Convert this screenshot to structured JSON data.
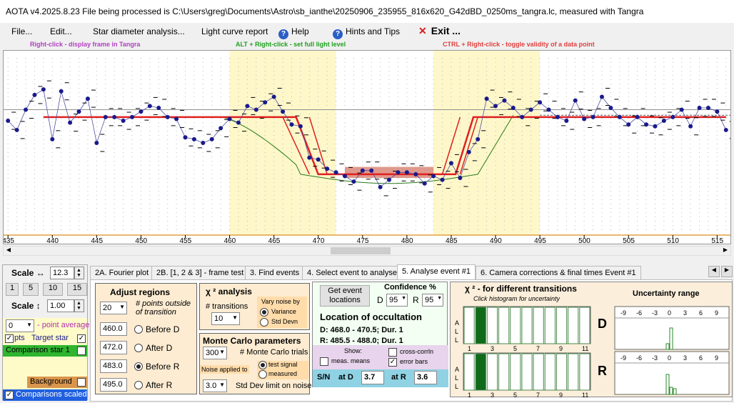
{
  "window": {
    "title": "AOTA v4.2025.8.23     File being processed is C:\\Users\\greg\\Documents\\Astro\\sb_ianthe\\20250906_235955_816x620_G42dBD_0250ms_tangra.lc, measured with Tangra"
  },
  "menu": {
    "file": "File...",
    "edit": "Edit...",
    "star_diameter": "Star diameter analysis...",
    "light_curve": "Light curve report",
    "help": "Help",
    "hints": "Hints and Tips",
    "exit": "Exit ..."
  },
  "hints": {
    "right_click": "Right-click  -  display frame in Tangra",
    "alt_right_click": "ALT + Right-click  -  set full light level",
    "ctrl_right_click": "CTRL + Right-click  -  toggle validity of a data point"
  },
  "colors": {
    "shade": "#fdf7c9",
    "event_line": "#e02020",
    "data": "#1a1a8c",
    "model": "#2a7a1a",
    "menu_hint_purple": "#b040c0",
    "menu_hint_green": "#20a020",
    "menu_hint_red": "#e04040"
  },
  "chart_data": {
    "type": "line",
    "x_ticks": [
      "435",
      "440",
      "445",
      "450",
      "455",
      "460",
      "465",
      "470",
      "475",
      "480",
      "485",
      "490",
      "495",
      "500",
      "505",
      "510",
      "515"
    ],
    "xlim": [
      434.5,
      516.5
    ],
    "ylim": [
      0,
      1
    ],
    "shaded_regions": [
      [
        460,
        472
      ],
      [
        483,
        495
      ]
    ],
    "event_model": [
      [
        439,
        0.64
      ],
      [
        467.5,
        0.64
      ],
      [
        470,
        0.33
      ],
      [
        485.5,
        0.33
      ],
      [
        487.5,
        0.64
      ],
      [
        516,
        0.64
      ]
    ],
    "data_points": [
      [
        435,
        0.62
      ],
      [
        436,
        0.57
      ],
      [
        437,
        0.68
      ],
      [
        438,
        0.76
      ],
      [
        439,
        0.79
      ],
      [
        440,
        0.52
      ],
      [
        441,
        0.78
      ],
      [
        442,
        0.61
      ],
      [
        443,
        0.67
      ],
      [
        444,
        0.74
      ],
      [
        445,
        0.5
      ],
      [
        446,
        0.64
      ],
      [
        447,
        0.64
      ],
      [
        448,
        0.62
      ],
      [
        449,
        0.64
      ],
      [
        450,
        0.67
      ],
      [
        451,
        0.7
      ],
      [
        452,
        0.69
      ],
      [
        453,
        0.64
      ],
      [
        454,
        0.63
      ],
      [
        455,
        0.53
      ],
      [
        456,
        0.52
      ],
      [
        457,
        0.5
      ],
      [
        458,
        0.52
      ],
      [
        459,
        0.58
      ],
      [
        460,
        0.63
      ],
      [
        461,
        0.61
      ],
      [
        462,
        0.7
      ],
      [
        463,
        0.68
      ],
      [
        464,
        0.72
      ],
      [
        465,
        0.75
      ],
      [
        466,
        0.67
      ],
      [
        467,
        0.6
      ],
      [
        468,
        0.59
      ],
      [
        469,
        0.42
      ],
      [
        470,
        0.41
      ],
      [
        471,
        0.36
      ],
      [
        472,
        0.34
      ],
      [
        473,
        0.32
      ],
      [
        474,
        0.29
      ],
      [
        475,
        0.35
      ],
      [
        476,
        0.35
      ],
      [
        477,
        0.26
      ],
      [
        478,
        0.3
      ],
      [
        479,
        0.34
      ],
      [
        480,
        0.34
      ],
      [
        481,
        0.33
      ],
      [
        482,
        0.28
      ],
      [
        483,
        0.32
      ],
      [
        484,
        0.3
      ],
      [
        485,
        0.39
      ],
      [
        486,
        0.31
      ],
      [
        487,
        0.45
      ],
      [
        488,
        0.52
      ],
      [
        489,
        0.74
      ],
      [
        490,
        0.7
      ],
      [
        491,
        0.73
      ],
      [
        492,
        0.69
      ],
      [
        493,
        0.64
      ],
      [
        494,
        0.68
      ],
      [
        495,
        0.72
      ],
      [
        496,
        0.68
      ],
      [
        497,
        0.64
      ],
      [
        498,
        0.62
      ],
      [
        499,
        0.73
      ],
      [
        500,
        0.63
      ],
      [
        501,
        0.64
      ],
      [
        502,
        0.75
      ],
      [
        503,
        0.69
      ],
      [
        504,
        0.64
      ],
      [
        505,
        0.6
      ],
      [
        506,
        0.64
      ],
      [
        507,
        0.6
      ],
      [
        508,
        0.59
      ],
      [
        509,
        0.62
      ],
      [
        510,
        0.64
      ],
      [
        511,
        0.68
      ],
      [
        512,
        0.59
      ],
      [
        513,
        0.69
      ],
      [
        514,
        0.69
      ],
      [
        515,
        0.67
      ],
      [
        516,
        0.57
      ]
    ]
  },
  "left_panel": {
    "scale_label": "Scale ↔",
    "scale_value": "12.3",
    "scale_buttons": [
      "1",
      "5",
      "10",
      "15"
    ],
    "scale_v_label": "Scale ↕",
    "scale_v_value": "1.00",
    "point_avg_value": "0",
    "point_avg_label": "- point average",
    "target_star_prefix": "pts",
    "target_star": "Target star",
    "comparison_star": "Comparison star 1",
    "background": "Background",
    "comparisons_scaled": "Comparisons scaled"
  },
  "tabs": [
    "2A. Fourier plot",
    "2B. [1, 2 & 3] - frame test",
    "3. Find events",
    "4. Select event to analyse",
    "5. Analyse event #1",
    "6. Camera corrections & final times Event #1"
  ],
  "adjust": {
    "title": "Adjust regions",
    "points_value": "20",
    "points_label": "# points outside of transition",
    "before_d": "460.0",
    "after_d": "472.0",
    "before_r": "483.0",
    "after_r": "495.0",
    "before_d_label": "Before D",
    "after_d_label": "After D",
    "before_r_label": "Before R",
    "after_r_label": "After R"
  },
  "chi2": {
    "title": "χ ² analysis",
    "transitions_label": "# transitions",
    "transitions_value": "10",
    "vary_noise": "Vary noise by",
    "variance": "Variance",
    "std_devn": "Std Devn"
  },
  "monte_carlo": {
    "title": "Monte Carlo parameters",
    "trials_value": "300",
    "trials_label": "# Monte Carlo trials",
    "noise_applied": "Noise applied to",
    "test_signal": "test signal",
    "measured": "measured",
    "std_dev_value": "3.0",
    "std_dev_label": "Std Dev limit on noise"
  },
  "location": {
    "get_events": "Get event locations",
    "confidence_label": "Confidence %",
    "d_label": "D",
    "d_value": "95",
    "r_label": "R",
    "r_value": "95",
    "title": "Location of occultation",
    "d_line": "D: 468.0 - 470.5; Dur. 1",
    "r_line": "R: 485.5 - 488.0; Dur. 1",
    "show_label": "Show:",
    "meas_means": "meas. means",
    "cross_corrln": "cross-corrln",
    "error_bars": "error bars",
    "sn_label": "S/N",
    "at_d": "at D",
    "sn_d": "3.7",
    "at_r": "at R",
    "sn_r": "3.6"
  },
  "transitions_panel": {
    "title": "χ ² - for different transitions",
    "subtitle": "Click histogram for uncertainty",
    "axis_letters": [
      "A",
      "L",
      "L"
    ],
    "ticks": [
      "1",
      "3",
      "5",
      "7",
      "9",
      "11"
    ],
    "d_bars": [
      0.98,
      0.98,
      0.98,
      0.98,
      0.98,
      0.98,
      0.98,
      0.98,
      0.98,
      0.98,
      0.98
    ],
    "r_bars": [
      0.98,
      0.98,
      0.98,
      0.98,
      0.98,
      0.98,
      0.98,
      0.98,
      0.98,
      0.98,
      0.98
    ]
  },
  "uncertainty": {
    "title": "Uncertainty range",
    "ticks": [
      "-9",
      "-6",
      "-3",
      "0",
      "3",
      "6",
      "9"
    ],
    "d_label": "D",
    "r_label": "R",
    "d_bars": [
      0.2,
      0.75
    ],
    "r_bars": [
      0.7,
      0.25,
      0.2
    ]
  }
}
